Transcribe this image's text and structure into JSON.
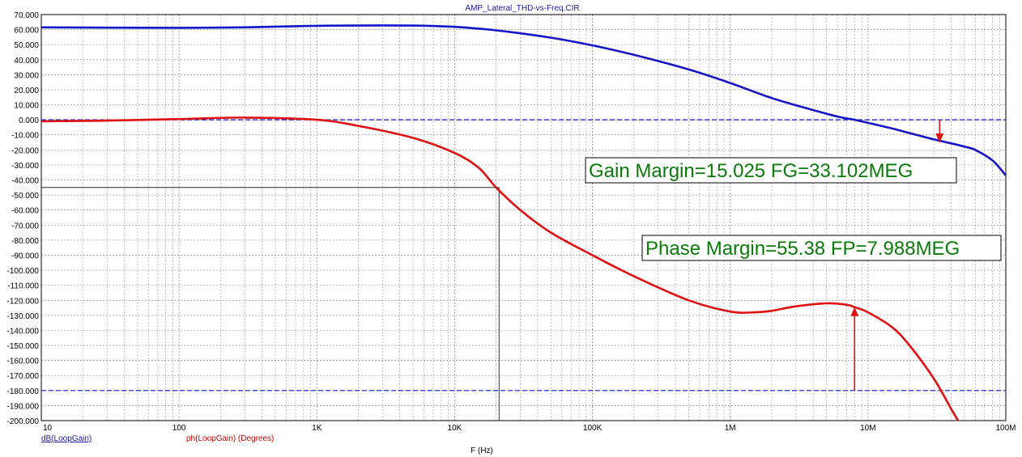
{
  "window": {
    "title": "AMP_Lateral_THD-vs-Freq.CIR"
  },
  "colors": {
    "gain": "#1414c8",
    "phase": "#e01010",
    "grid": "#9a9a9a",
    "annotation_text": "#0a7a0a",
    "annotation_border": "#000000",
    "crosshair": "#000000"
  },
  "chart_data": {
    "type": "line",
    "title": "AMP_Lateral_THD-vs-Freq.CIR",
    "xlabel": "F (Hz)",
    "ylabel": "",
    "x_scale": "log",
    "xlim": [
      10,
      100000000
    ],
    "ylim": [
      -200,
      70
    ],
    "y_ticks": [
      70,
      60,
      50,
      40,
      30,
      20,
      10,
      0,
      -10,
      -20,
      -30,
      -40,
      -50,
      -60,
      -70,
      -80,
      -90,
      -100,
      -110,
      -120,
      -130,
      -140,
      -150,
      -160,
      -170,
      -180,
      -190,
      -200
    ],
    "y_tick_labels": [
      "70.000",
      "60.000",
      "50.000",
      "40.000",
      "30.000",
      "20.000",
      "10.000",
      "0.000",
      "-10.000",
      "-20.000",
      "-30.000",
      "-40.000",
      "-50.000",
      "-60.000",
      "-70.000",
      "-80.000",
      "-90.000",
      "-100.000",
      "-110.000",
      "-120.000",
      "-130.000",
      "-140.000",
      "-150.000",
      "-160.000",
      "-170.000",
      "-180.000",
      "-190.000",
      "-200.000"
    ],
    "x_ticks": [
      10,
      100,
      1000,
      10000,
      100000,
      1000000,
      10000000,
      100000000
    ],
    "x_tick_labels": [
      "10",
      "100",
      "1K",
      "10K",
      "100K",
      "1M",
      "10M",
      "100M"
    ],
    "grid": true,
    "legend": [
      {
        "label": "dB(LoopGain)",
        "color": "#1414c8"
      },
      {
        "label": "ph(LoopGain) (Degrees)",
        "color": "#e01010"
      }
    ],
    "series": [
      {
        "name": "dB(LoopGain)",
        "x": [
          10,
          30,
          100,
          300,
          1000,
          3000,
          6000,
          10000,
          20000,
          50000,
          100000,
          200000,
          500000,
          1000000,
          2000000,
          4000000,
          6000000,
          8000000,
          10000000,
          15000000,
          20000000,
          30000000,
          40000000,
          50000000,
          60000000,
          80000000,
          100000000
        ],
        "y": [
          61.5,
          61.3,
          61.2,
          61.5,
          62.5,
          62.8,
          62.6,
          61.8,
          59.5,
          54.6,
          49.5,
          43.2,
          33.5,
          24.5,
          14.5,
          6.5,
          2.2,
          0.0,
          -2.0,
          -5.8,
          -8.8,
          -13.0,
          -15.6,
          -17.8,
          -20.0,
          -27.0,
          -37.0
        ]
      },
      {
        "name": "ph(LoopGain) (Degrees)",
        "x": [
          10,
          30,
          100,
          300,
          1000,
          2000,
          5000,
          10000,
          15000,
          20000,
          30000,
          50000,
          100000,
          200000,
          500000,
          1000000,
          1500000,
          2000000,
          3000000,
          5000000,
          7000000,
          8000000,
          10000000,
          15000000,
          20000000,
          30000000,
          40000000,
          45000000
        ],
        "y": [
          -1.0,
          -0.5,
          0.5,
          1.5,
          0.0,
          -4.0,
          -12.0,
          -22.0,
          -32.0,
          -45.0,
          -60.0,
          -75.0,
          -90.0,
          -104.0,
          -120.0,
          -127.5,
          -128.0,
          -127.0,
          -124.0,
          -122.0,
          -123.0,
          -124.6,
          -128.0,
          -138.0,
          -150.0,
          -172.0,
          -192.0,
          -200.0
        ]
      }
    ],
    "reference_lines": [
      {
        "axis": "y",
        "value": 0,
        "color": "#1414c8",
        "style": "dashed"
      },
      {
        "axis": "y",
        "value": -180,
        "color": "#1414c8",
        "style": "dashed"
      }
    ],
    "crosshair": {
      "x": 21000,
      "y": -45
    },
    "annotations": [
      {
        "text": "Gain Margin=15.025 FG=33.102MEG",
        "arrow": {
          "x": 33102000,
          "y_from": 0,
          "y_to": -15.025,
          "color": "#e01010"
        }
      },
      {
        "text": "Phase Margin=55.38 FP=7.988MEG",
        "arrow": {
          "x": 7988000,
          "y_from": -180,
          "y_to": -124.62,
          "color": "#e01010"
        }
      }
    ]
  }
}
